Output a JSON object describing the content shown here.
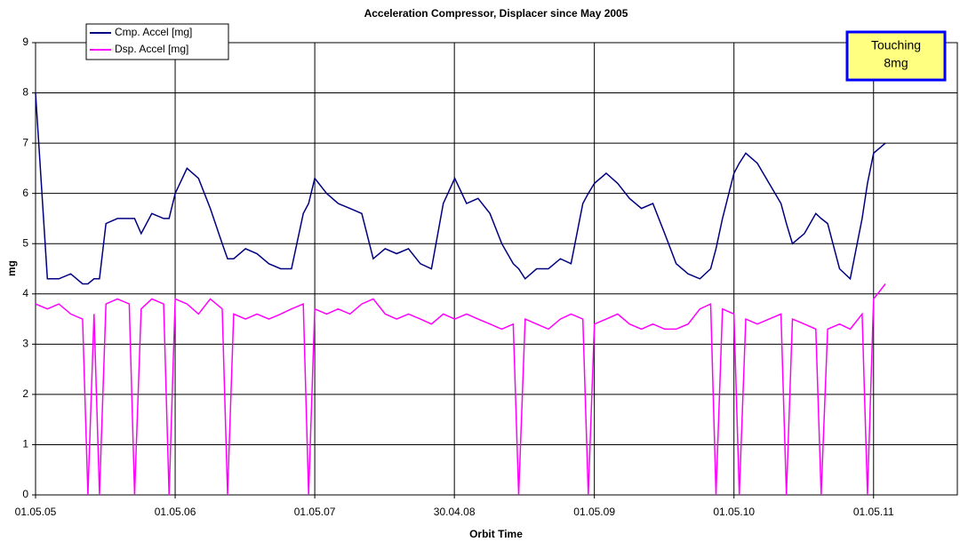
{
  "chart_data": {
    "type": "line",
    "title": "Acceleration Compressor, Displacer since May 2005",
    "x_label": "Orbit Time",
    "y_label": "mg",
    "annotation": [
      "Touching",
      "8mg"
    ],
    "xlim": [
      "2005-05-01",
      "2011-12-06"
    ],
    "xticks": [
      {
        "value": "2005-05-01",
        "label": "01.05.05"
      },
      {
        "value": "2006-05-01",
        "label": "01.05.06"
      },
      {
        "value": "2007-05-01",
        "label": "01.05.07"
      },
      {
        "value": "2008-04-30",
        "label": "30.04.08"
      },
      {
        "value": "2009-05-01",
        "label": "01.05.09"
      },
      {
        "value": "2010-05-01",
        "label": "01.05.10"
      },
      {
        "value": "2011-05-01",
        "label": "01.05.11"
      }
    ],
    "ylim": [
      0,
      9
    ],
    "yticks": [
      0,
      1,
      2,
      3,
      4,
      5,
      6,
      7,
      8,
      9
    ],
    "grid": true,
    "legend": "top-left",
    "x": [
      "2005-05-01",
      "2005-06-01",
      "2005-07-01",
      "2005-08-01",
      "2005-09-01",
      "2005-09-15",
      "2005-10-01",
      "2005-10-15",
      "2005-11-01",
      "2005-12-01",
      "2006-01-01",
      "2006-01-15",
      "2006-02-01",
      "2006-03-01",
      "2006-04-01",
      "2006-04-15",
      "2006-05-01",
      "2006-06-01",
      "2006-07-01",
      "2006-08-01",
      "2006-09-01",
      "2006-09-15",
      "2006-10-01",
      "2006-11-01",
      "2006-12-01",
      "2007-01-01",
      "2007-02-01",
      "2007-03-01",
      "2007-04-01",
      "2007-04-15",
      "2007-05-01",
      "2007-06-01",
      "2007-07-01",
      "2007-08-01",
      "2007-09-01",
      "2007-10-01",
      "2007-11-01",
      "2007-12-01",
      "2008-01-01",
      "2008-02-01",
      "2008-03-01",
      "2008-04-01",
      "2008-05-01",
      "2008-06-01",
      "2008-07-01",
      "2008-08-01",
      "2008-09-01",
      "2008-10-01",
      "2008-10-15",
      "2008-11-01",
      "2008-12-01",
      "2009-01-01",
      "2009-02-01",
      "2009-03-01",
      "2009-04-01",
      "2009-04-15",
      "2009-05-01",
      "2009-06-01",
      "2009-07-01",
      "2009-08-01",
      "2009-09-01",
      "2009-10-01",
      "2009-11-01",
      "2009-12-01",
      "2010-01-01",
      "2010-02-01",
      "2010-03-01",
      "2010-03-15",
      "2010-04-01",
      "2010-05-01",
      "2010-05-15",
      "2010-06-01",
      "2010-07-01",
      "2010-08-01",
      "2010-09-01",
      "2010-09-15",
      "2010-10-01",
      "2010-11-01",
      "2010-12-01",
      "2010-12-15",
      "2011-01-01",
      "2011-02-01",
      "2011-03-01",
      "2011-04-01",
      "2011-04-15",
      "2011-05-01",
      "2011-06-01"
    ],
    "series": [
      {
        "name": "Cmp. Accel [mg]",
        "color": "#000080",
        "values": [
          8.0,
          4.3,
          4.3,
          4.4,
          4.2,
          4.2,
          4.3,
          4.3,
          5.4,
          5.5,
          5.5,
          5.5,
          5.2,
          5.6,
          5.5,
          5.5,
          6.0,
          6.5,
          6.3,
          5.7,
          5.0,
          4.7,
          4.7,
          4.9,
          4.8,
          4.6,
          4.5,
          4.5,
          5.6,
          5.8,
          6.3,
          6.0,
          5.8,
          5.7,
          5.6,
          4.7,
          4.9,
          4.8,
          4.9,
          4.6,
          4.5,
          5.8,
          6.3,
          5.8,
          5.9,
          5.6,
          5.0,
          4.6,
          4.5,
          4.3,
          4.5,
          4.5,
          4.7,
          4.6,
          5.8,
          6.0,
          6.2,
          6.4,
          6.2,
          5.9,
          5.7,
          5.8,
          5.2,
          4.6,
          4.4,
          4.3,
          4.5,
          4.9,
          5.5,
          6.4,
          6.6,
          6.8,
          6.6,
          6.2,
          5.8,
          5.4,
          5.0,
          5.2,
          5.6,
          5.5,
          5.4,
          4.5,
          4.3,
          5.5,
          6.2,
          6.8,
          7.0
        ]
      },
      {
        "name": "Dsp. Accel [mg]",
        "color": "#ff00ff",
        "values": [
          3.8,
          3.7,
          3.8,
          3.6,
          3.5,
          0,
          3.6,
          0,
          3.8,
          3.9,
          3.8,
          0,
          3.7,
          3.9,
          3.8,
          0,
          3.9,
          3.8,
          3.6,
          3.9,
          3.7,
          0,
          3.6,
          3.5,
          3.6,
          3.5,
          3.6,
          3.7,
          3.8,
          0,
          3.7,
          3.6,
          3.7,
          3.6,
          3.8,
          3.9,
          3.6,
          3.5,
          3.6,
          3.5,
          3.4,
          3.6,
          3.5,
          3.6,
          3.5,
          3.4,
          3.3,
          3.4,
          0,
          3.5,
          3.4,
          3.3,
          3.5,
          3.6,
          3.5,
          0,
          3.4,
          3.5,
          3.6,
          3.4,
          3.3,
          3.4,
          3.3,
          3.3,
          3.4,
          3.7,
          3.8,
          0,
          3.7,
          3.6,
          0,
          3.5,
          3.4,
          3.5,
          3.6,
          0,
          3.5,
          3.4,
          3.3,
          0,
          3.3,
          3.4,
          3.3,
          3.6,
          0,
          3.9,
          4.2
        ]
      }
    ]
  }
}
